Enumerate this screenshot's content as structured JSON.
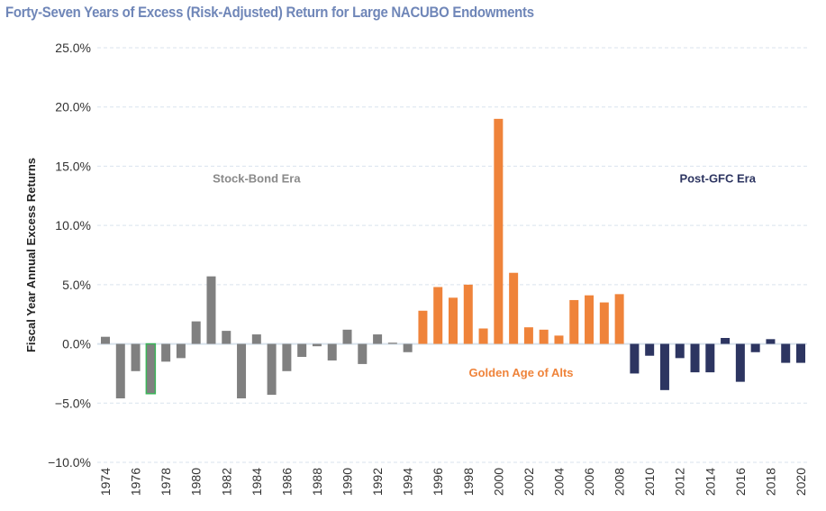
{
  "chart_data": {
    "type": "bar",
    "title": "Forty-Seven Years of Excess (Risk-Adjusted) Return for Large NACUBO Endowments",
    "xlabel": "",
    "ylabel": "Fiscal Year Annual Excess Returns",
    "ylim": [
      -10,
      25
    ],
    "yticks": [
      25,
      20,
      15,
      10,
      5,
      0,
      -5,
      -10
    ],
    "ytick_labels": [
      "25.0%",
      "20.0%",
      "15.0%",
      "10.0%",
      "5.0%",
      "0.0%",
      "−5.0%",
      "−10.0%"
    ],
    "grid": true,
    "legend": "none",
    "categories": [
      "1974",
      "1975",
      "1976",
      "1977",
      "1978",
      "1979",
      "1980",
      "1981",
      "1982",
      "1983",
      "1984",
      "1985",
      "1986",
      "1987",
      "1988",
      "1989",
      "1990",
      "1991",
      "1992",
      "1993",
      "1994",
      "1995",
      "1996",
      "1997",
      "1998",
      "1999",
      "2000",
      "2001",
      "2002",
      "2003",
      "2004",
      "2005",
      "2006",
      "2007",
      "2008",
      "2009",
      "2010",
      "2011",
      "2012",
      "2013",
      "2014",
      "2015",
      "2016",
      "2017",
      "2018",
      "2019",
      "2020"
    ],
    "xtick_labels": [
      "1974",
      "1976",
      "1978",
      "1980",
      "1982",
      "1984",
      "1986",
      "1988",
      "1990",
      "1992",
      "1994",
      "1996",
      "1998",
      "2000",
      "2002",
      "2004",
      "2006",
      "2008",
      "2010",
      "2012",
      "2014",
      "2016",
      "2018",
      "2020"
    ],
    "values": [
      0.6,
      -4.6,
      -2.3,
      -4.2,
      -1.5,
      -1.2,
      1.9,
      5.7,
      1.1,
      -4.6,
      0.8,
      -4.3,
      -2.3,
      -1.1,
      -0.2,
      -1.4,
      1.2,
      -1.7,
      0.8,
      0.1,
      -0.7,
      2.8,
      4.8,
      3.9,
      5.0,
      1.3,
      19.0,
      6.0,
      1.4,
      1.2,
      0.7,
      3.7,
      4.1,
      3.5,
      4.2,
      -2.5,
      -1.0,
      -3.9,
      -1.2,
      -2.4,
      -2.4,
      0.5,
      -3.2,
      -0.7,
      0.4,
      -1.6,
      -1.6
    ],
    "eras": [
      {
        "name": "Stock-Bond Era",
        "start": "1974",
        "end": "1994",
        "color": "#808080",
        "label_y": 14.0
      },
      {
        "name": "Golden Age of Alts",
        "start": "1995",
        "end": "2008",
        "color": "#ef833a",
        "label_y": -2.4
      },
      {
        "name": "Post-GFC Era",
        "start": "2009",
        "end": "2020",
        "color": "#2d3561",
        "label_y": 14.0
      }
    ],
    "highlight": {
      "category": "1977",
      "outline_color": "#3cb55a"
    },
    "era_label_colors": {
      "Stock-Bond Era": "#8a8a8a",
      "Golden Age of Alts": "#ef833a",
      "Post-GFC Era": "#2d3561"
    }
  }
}
